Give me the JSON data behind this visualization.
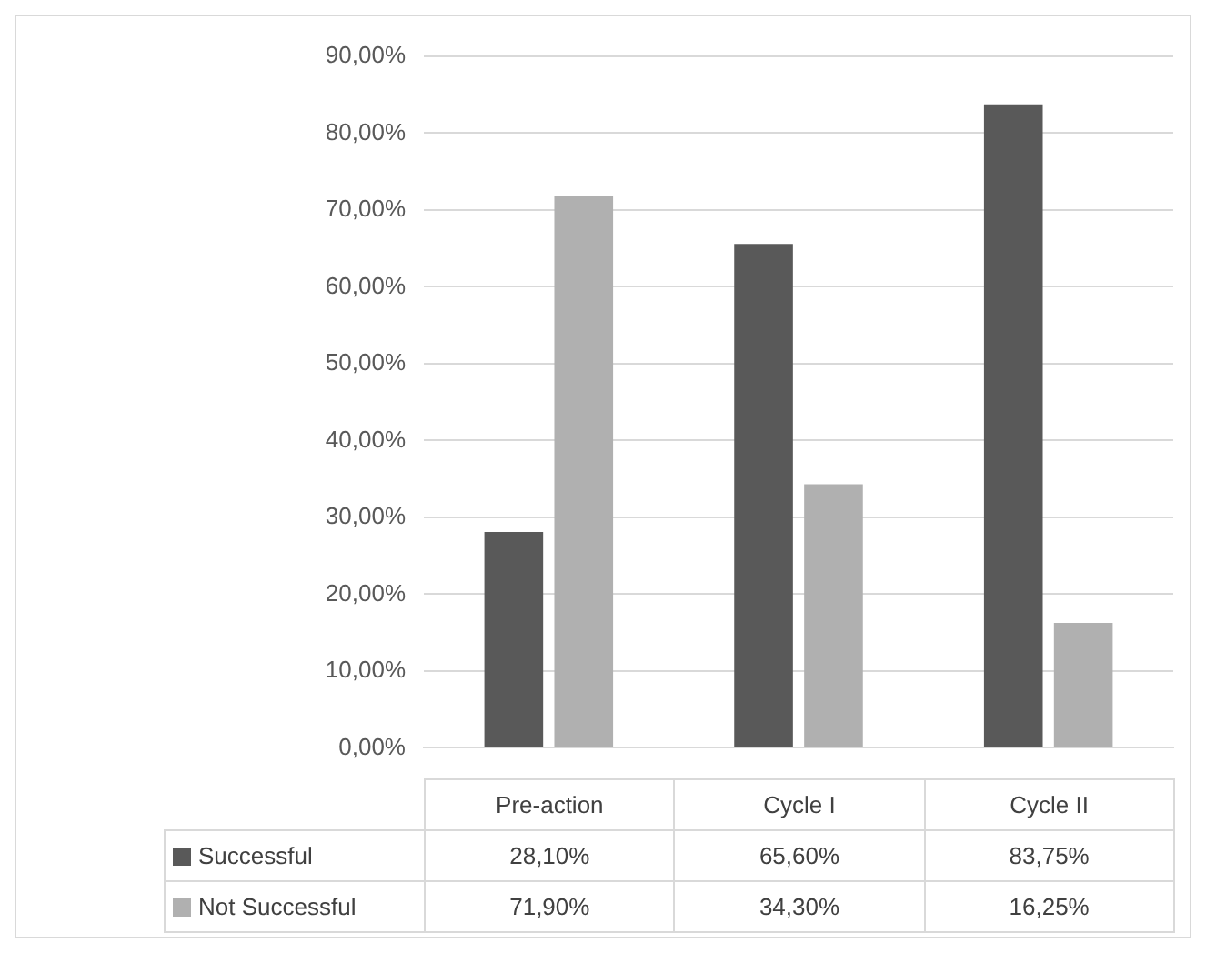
{
  "chart_data": {
    "type": "bar",
    "categories": [
      "Pre-action",
      "Cycle I",
      "Cycle II"
    ],
    "series": [
      {
        "name": "Successful",
        "color": "#595959",
        "values": [
          28.1,
          65.6,
          83.75
        ],
        "value_labels": [
          "28,10%",
          "65,60%",
          "83,75%"
        ]
      },
      {
        "name": "Not Successful",
        "color": "#b0b0b0",
        "values": [
          71.9,
          34.3,
          16.25
        ],
        "value_labels": [
          "71,90%",
          "34,30%",
          "16,25%"
        ]
      }
    ],
    "ylim": [
      0,
      90
    ],
    "yticks": [
      {
        "value": 0,
        "label": "0,00%"
      },
      {
        "value": 10,
        "label": "10,00%"
      },
      {
        "value": 20,
        "label": "20,00%"
      },
      {
        "value": 30,
        "label": "30,00%"
      },
      {
        "value": 40,
        "label": "40,00%"
      },
      {
        "value": 50,
        "label": "50,00%"
      },
      {
        "value": 60,
        "label": "60,00%"
      },
      {
        "value": 70,
        "label": "70,00%"
      },
      {
        "value": 80,
        "label": "80,00%"
      },
      {
        "value": 90,
        "label": "90,00%"
      }
    ],
    "grid": "y",
    "legend": "bottom"
  }
}
